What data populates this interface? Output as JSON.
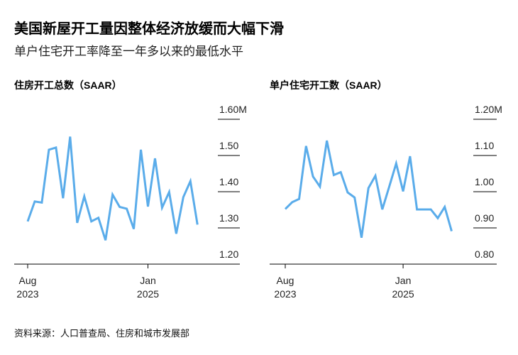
{
  "title": "美国新屋开工量因整体经济放缓而大幅下滑",
  "subtitle": "单户住宅开工率降至一年多以来的最低水平",
  "source": "资料来源：人口普查局、住房和城市发展部",
  "colors": {
    "line": "#5aacea",
    "axis": "#000000"
  },
  "chart_data": [
    {
      "type": "line",
      "title": "住房开工总数（SAAR）",
      "x_start": "2023-08",
      "x_end": "2025-08",
      "frequency": "monthly",
      "x_ticks": [
        {
          "month": "2023-08",
          "label": [
            "Aug",
            "2023"
          ]
        },
        {
          "month": "2025-01",
          "label": [
            "Jan",
            "2025"
          ]
        }
      ],
      "y_ticks": [
        "1.20",
        "1.30",
        "1.40",
        "1.50",
        "1.60M"
      ],
      "ylim": [
        1.2,
        1.6
      ],
      "grid": true,
      "values": [
        1.318,
        1.373,
        1.37,
        1.516,
        1.522,
        1.382,
        1.552,
        1.314,
        1.387,
        1.318,
        1.328,
        1.266,
        1.392,
        1.358,
        1.353,
        1.297,
        1.516,
        1.359,
        1.492,
        1.356,
        1.399,
        1.284,
        1.385,
        1.429,
        1.309
      ]
    },
    {
      "type": "line",
      "title": "单户住宅开工数（SAAR）",
      "x_start": "2023-08",
      "x_end": "2025-08",
      "frequency": "monthly",
      "x_ticks": [
        {
          "month": "2023-08",
          "label": [
            "Aug",
            "2023"
          ]
        },
        {
          "month": "2025-01",
          "label": [
            "Jan",
            "2025"
          ]
        }
      ],
      "y_ticks": [
        "0.80",
        "0.90",
        "1.00",
        "1.10",
        "1.20M"
      ],
      "ylim": [
        0.8,
        1.2
      ],
      "grid": true,
      "values": [
        0.952,
        0.971,
        0.98,
        1.126,
        1.042,
        1.014,
        1.141,
        1.046,
        1.054,
        0.998,
        0.984,
        0.873,
        1.01,
        1.044,
        0.951,
        1.014,
        1.078,
        1.001,
        1.098,
        0.951,
        0.951,
        0.951,
        0.927,
        0.958,
        0.891
      ]
    }
  ]
}
